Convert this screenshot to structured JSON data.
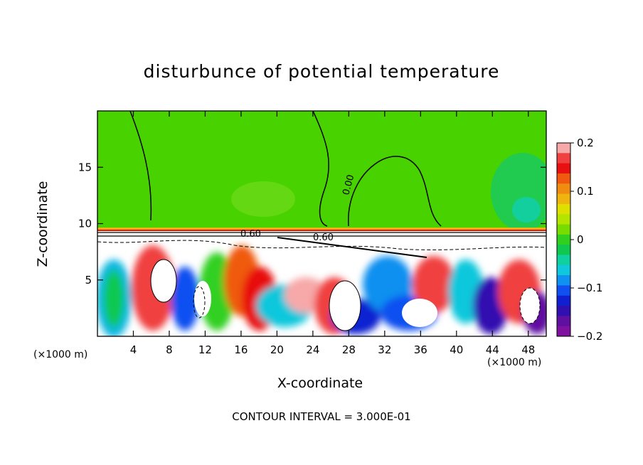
{
  "chart_data": {
    "type": "heatmap",
    "title": "disturbunce of potential temperature",
    "xlabel": "X-coordinate",
    "ylabel": "Z-coordinate",
    "x_unit": "(×1000 m)",
    "xlim": [
      0,
      50
    ],
    "ylim": [
      0,
      20
    ],
    "x_ticks": [
      4,
      8,
      12,
      16,
      20,
      24,
      28,
      32,
      36,
      40,
      44,
      48
    ],
    "y_ticks": [
      5,
      10,
      15
    ],
    "colorbar": {
      "range": [
        -0.2,
        0.2
      ],
      "tick_labels": [
        "0.2",
        "0.1",
        "0",
        "−0.1",
        "−0.2"
      ],
      "tick_values": [
        0.2,
        0.1,
        0,
        -0.1,
        -0.2
      ],
      "colors": [
        "#f7a8a8",
        "#f04040",
        "#e81010",
        "#f05a10",
        "#f08c10",
        "#f0b410",
        "#e0e000",
        "#b4e400",
        "#78dc00",
        "#30d020",
        "#10c850",
        "#10d0a0",
        "#10c8dc",
        "#1090f0",
        "#1050f0",
        "#1020d0",
        "#3010b0",
        "#6010a0",
        "#8010a0"
      ]
    },
    "contour_labels": [
      "0.00",
      "0.60",
      "0.60"
    ],
    "contour_interval": "CONTOUR INTERVAL = 3.000E-01"
  }
}
